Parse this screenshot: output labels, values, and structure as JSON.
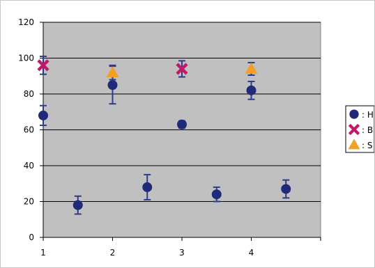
{
  "chart_data": {
    "type": "scatter",
    "title": "",
    "xlabel": "",
    "ylabel": "",
    "xlim": [
      1,
      5
    ],
    "ylim": [
      0,
      120
    ],
    "x_ticks": [
      "1",
      "2",
      "3",
      "4"
    ],
    "y_ticks": [
      "0",
      "20",
      "40",
      "60",
      "80",
      "100",
      "120"
    ],
    "grid": "horizontal",
    "legend_position": "right",
    "colors": {
      "plot_background": "#c0c0c0",
      "grid": "#000000",
      "error_bar": "#2e3a8a"
    },
    "series": [
      {
        "name": ": H",
        "marker": "circle",
        "color": "#1f2a78",
        "points": [
          {
            "x": 1.0,
            "y": 68,
            "err": 5.5
          },
          {
            "x": 1.5,
            "y": 18,
            "err": 5
          },
          {
            "x": 2.0,
            "y": 85,
            "err": 10.5
          },
          {
            "x": 2.5,
            "y": 28,
            "err": 7
          },
          {
            "x": 3.0,
            "y": 63,
            "err": 2
          },
          {
            "x": 3.5,
            "y": 24,
            "err": 4
          },
          {
            "x": 4.0,
            "y": 82,
            "err": 5
          },
          {
            "x": 4.5,
            "y": 27,
            "err": 5
          }
        ]
      },
      {
        "name": ": B",
        "marker": "x",
        "color": "#c2186b",
        "points": [
          {
            "x": 1.0,
            "y": 96,
            "err": 5
          },
          {
            "x": 3.0,
            "y": 94,
            "err": 4.5
          }
        ]
      },
      {
        "name": ": S",
        "marker": "triangle",
        "color": "#f5a020",
        "points": [
          {
            "x": 2.0,
            "y": 92,
            "err": 4
          },
          {
            "x": 4.0,
            "y": 94,
            "err": 3.5
          }
        ]
      }
    ]
  }
}
